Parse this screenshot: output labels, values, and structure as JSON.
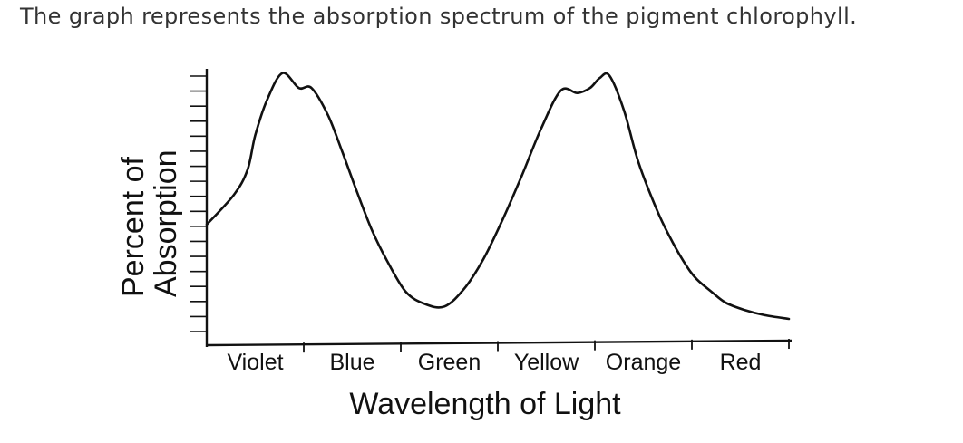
{
  "caption": "The graph represents the absorption spectrum of the pigment chlorophyll.",
  "chart_data": {
    "type": "line",
    "title": "",
    "xlabel": "Wavelength of Light",
    "ylabel_lines": [
      "Percent of",
      "Absorption"
    ],
    "categories": [
      "Violet",
      "Blue",
      "Green",
      "Yellow",
      "Orange",
      "Red"
    ],
    "grid": false,
    "legend": "none",
    "xlim": [
      0,
      6
    ],
    "ylim": [
      0,
      100
    ],
    "y_tick_count": 18,
    "series": [
      {
        "x": [
          0.0,
          0.28,
          0.42,
          0.5,
          0.62,
          0.78,
          0.95,
          1.08,
          1.25,
          1.4,
          1.55,
          1.7,
          1.85,
          2.05,
          2.25,
          2.45,
          2.65,
          2.85,
          3.05,
          3.25,
          3.45,
          3.65,
          3.82,
          3.95,
          4.05,
          4.15,
          4.3,
          4.45,
          4.65,
          4.8,
          4.95,
          5.05,
          5.2,
          5.35,
          5.55,
          5.75,
          6.0
        ],
        "y": [
          38,
          50,
          60,
          74,
          88,
          99,
          93,
          93,
          82,
          67,
          51,
          36,
          24,
          11,
          6,
          5,
          12,
          24,
          40,
          58,
          77,
          92,
          91,
          93,
          97,
          98,
          84,
          63,
          43,
          31,
          21,
          16,
          11,
          6.5,
          3.5,
          1.5,
          0
        ]
      }
    ]
  }
}
